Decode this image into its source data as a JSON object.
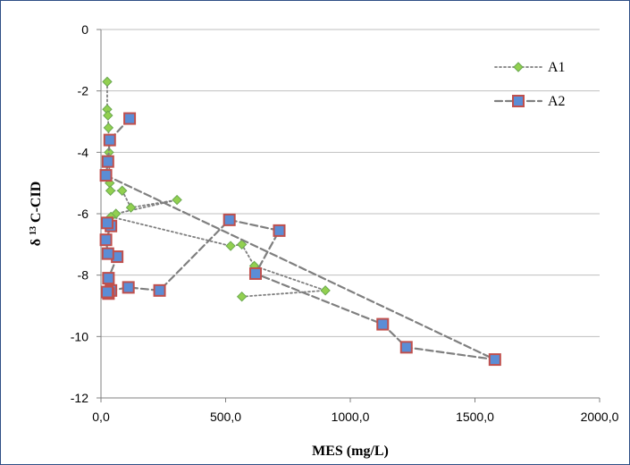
{
  "chart_data": {
    "type": "scatter",
    "title": "",
    "xlabel": "MES (mg/L)",
    "ylabel_parts": {
      "prefix": "δ",
      "superscript": "13",
      "suffix": "C-CID"
    },
    "xlim": [
      0,
      2000
    ],
    "ylim": [
      -12,
      0
    ],
    "x_ticks": [
      {
        "value": 0,
        "label": "0,0"
      },
      {
        "value": 500,
        "label": "500,0"
      },
      {
        "value": 1000,
        "label": "1000,0"
      },
      {
        "value": 1500,
        "label": "1500,0"
      },
      {
        "value": 2000,
        "label": "2000,0"
      }
    ],
    "y_ticks": [
      {
        "value": 0,
        "label": "0"
      },
      {
        "value": -2,
        "label": "-2"
      },
      {
        "value": -4,
        "label": "-4"
      },
      {
        "value": -6,
        "label": "-6"
      },
      {
        "value": -8,
        "label": "-8"
      },
      {
        "value": -10,
        "label": "-10"
      },
      {
        "value": -12,
        "label": "-12"
      }
    ],
    "grid": true,
    "legend_position": "top-right",
    "series": [
      {
        "name": "A1",
        "style": "dotted",
        "marker": "diamond",
        "color": "#7f7f7f",
        "marker_fill": "#92d050",
        "marker_edge": "#6aa84f",
        "points": [
          {
            "x": 25,
            "y": -1.7
          },
          {
            "x": 25,
            "y": -2.6
          },
          {
            "x": 28,
            "y": -2.8
          },
          {
            "x": 30,
            "y": -3.2
          },
          {
            "x": 32,
            "y": -4.0
          },
          {
            "x": 35,
            "y": -5.0
          },
          {
            "x": 38,
            "y": -5.25
          },
          {
            "x": 85,
            "y": -5.25
          },
          {
            "x": 120,
            "y": -5.8
          },
          {
            "x": 305,
            "y": -5.55
          },
          {
            "x": 60,
            "y": -6.0
          },
          {
            "x": 40,
            "y": -6.1
          },
          {
            "x": 520,
            "y": -7.05
          },
          {
            "x": 565,
            "y": -7.0
          },
          {
            "x": 615,
            "y": -7.7
          },
          {
            "x": 900,
            "y": -8.5
          },
          {
            "x": 565,
            "y": -8.7
          }
        ]
      },
      {
        "name": "A2",
        "style": "dashed",
        "marker": "square",
        "color": "#7f7f7f",
        "marker_fill": "#5b8dd6",
        "marker_edge": "#c0504d",
        "points": [
          {
            "x": 115,
            "y": -2.9
          },
          {
            "x": 35,
            "y": -3.6
          },
          {
            "x": 28,
            "y": -4.3
          },
          {
            "x": 20,
            "y": -4.75
          },
          {
            "x": 1580,
            "y": -10.75
          },
          {
            "x": 1225,
            "y": -10.35
          },
          {
            "x": 1130,
            "y": -9.6
          },
          {
            "x": 620,
            "y": -7.95
          },
          {
            "x": 715,
            "y": -6.55
          },
          {
            "x": 515,
            "y": -6.2
          },
          {
            "x": 235,
            "y": -8.5
          },
          {
            "x": 110,
            "y": -8.4
          },
          {
            "x": 40,
            "y": -8.5
          },
          {
            "x": 30,
            "y": -8.6
          },
          {
            "x": 25,
            "y": -8.55
          },
          {
            "x": 30,
            "y": -8.1
          },
          {
            "x": 65,
            "y": -7.4
          },
          {
            "x": 28,
            "y": -7.3
          },
          {
            "x": 20,
            "y": -6.85
          },
          {
            "x": 40,
            "y": -6.4
          },
          {
            "x": 25,
            "y": -6.3
          }
        ]
      }
    ]
  }
}
